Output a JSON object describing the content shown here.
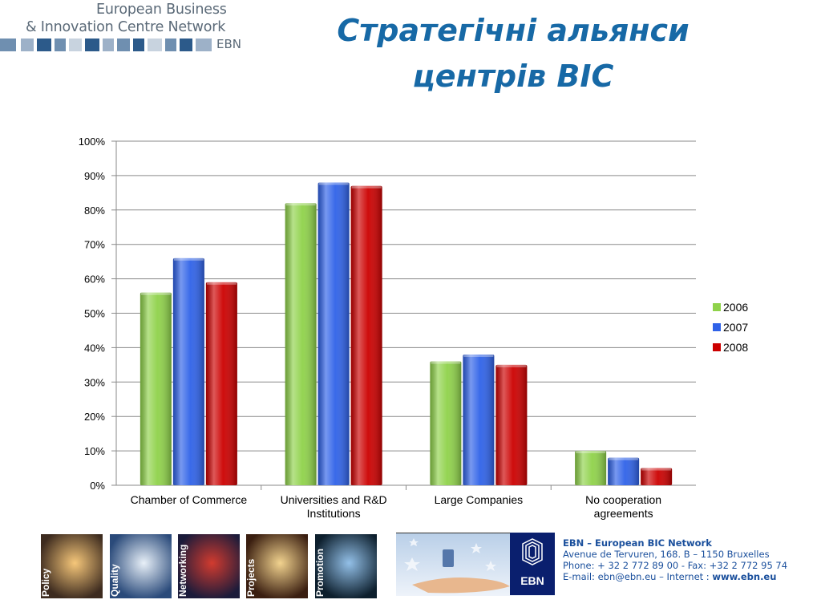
{
  "header": {
    "logo_line1": "European Business",
    "logo_line2": "& Innovation Centre Network",
    "logo_abbr": "EBN",
    "title_line1": "Стратегічні альянси",
    "title_line2": "центрів BIC"
  },
  "chart_data": {
    "type": "bar",
    "categories": [
      [
        "Chamber of Commerce"
      ],
      [
        "Universities and R&D",
        "Institutions"
      ],
      [
        "Large Companies"
      ],
      [
        "No cooperation",
        "agreements"
      ]
    ],
    "series": [
      {
        "name": "2006",
        "values": [
          56,
          82,
          36,
          10
        ],
        "color": "#8fd24a"
      },
      {
        "name": "2007",
        "values": [
          66,
          88,
          38,
          8
        ],
        "color": "#2f62e8"
      },
      {
        "name": "2008",
        "values": [
          59,
          87,
          35,
          5
        ],
        "color": "#cc0000"
      }
    ],
    "yticks": [
      "0%",
      "10%",
      "20%",
      "30%",
      "40%",
      "50%",
      "60%",
      "70%",
      "80%",
      "90%",
      "100%"
    ],
    "ylim": [
      0,
      100
    ],
    "grid": true,
    "legend": "right"
  },
  "footer": {
    "photos": [
      {
        "label": "Policy",
        "colors": [
          "#f6c77a",
          "#3d2b1f"
        ]
      },
      {
        "label": "Quality",
        "colors": [
          "#e8f0f8",
          "#2a4a7a"
        ]
      },
      {
        "label": "Networking",
        "colors": [
          "#d23b2f",
          "#1b1b3a"
        ]
      },
      {
        "label": "Projects",
        "colors": [
          "#f2d38f",
          "#3a1e10"
        ]
      },
      {
        "label": "Promotion",
        "colors": [
          "#93c0e8",
          "#0d1f2d"
        ]
      }
    ],
    "org_name": "EBN – European BIC Network",
    "address": "Avenue de Tervuren, 168.  B – 1150 Bruxelles",
    "phone": "Phone: + 32 2 772 89 00 - Fax: +32 2 772 95 74",
    "email_prefix": "E-mail: ebn@ebn.eu – Internet : ",
    "website": "www.ebn.eu",
    "ebn_logo": "EBN"
  }
}
